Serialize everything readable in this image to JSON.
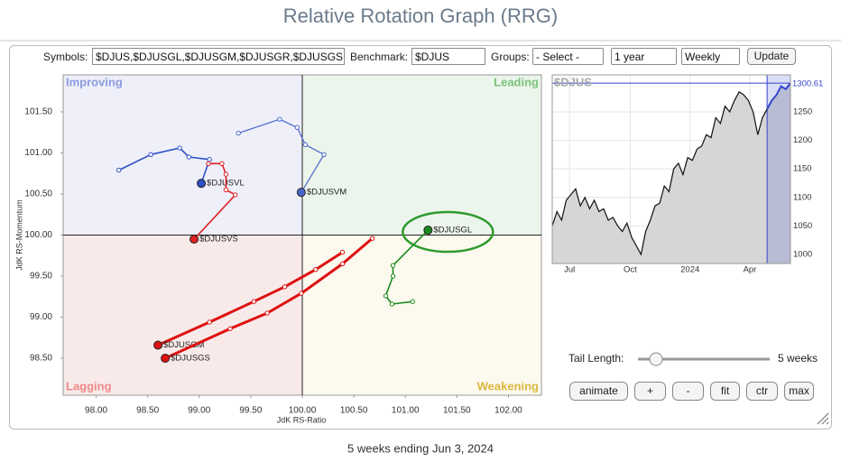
{
  "header": {
    "title": "Relative Rotation Graph (RRG)"
  },
  "controls": {
    "symbols_label": "Symbols:",
    "symbols_value": "$DJUS,$DJUSGL,$DJUSGM,$DJUSGR,$DJUSGS",
    "benchmark_label": "Benchmark:",
    "benchmark_value": "$DJUS",
    "groups_label": "Groups:",
    "groups_value": "- Select -",
    "period_value": "1 year",
    "frequency_value": "Weekly",
    "update_button": "Update"
  },
  "chart_data": [
    {
      "type": "rrg",
      "xlabel": "JdK RS-Ratio",
      "ylabel": "JdK RS-Momentum",
      "xlim": [
        97.68,
        102.32
      ],
      "ylim": [
        98.05,
        101.95
      ],
      "center": [
        100,
        100
      ],
      "quadrants": [
        "Improving",
        "Leading",
        "Lagging",
        "Weakening"
      ],
      "xticks": [
        {
          "value": 98,
          "label": "98.00"
        },
        {
          "value": 98.5,
          "label": "98.50"
        },
        {
          "value": 99,
          "label": "99.00"
        },
        {
          "value": 99.5,
          "label": "99.50"
        },
        {
          "value": 100,
          "label": "100.00"
        },
        {
          "value": 100.5,
          "label": "100.50"
        },
        {
          "value": 101,
          "label": "101.00"
        },
        {
          "value": 101.5,
          "label": "101.50"
        },
        {
          "value": 102,
          "label": "102.00"
        }
      ],
      "yticks": [
        {
          "value": 98.5,
          "label": "98.50"
        },
        {
          "value": 99,
          "label": "99.00"
        },
        {
          "value": 99.5,
          "label": "99.50"
        },
        {
          "value": 100,
          "label": "100.00"
        },
        {
          "value": 100.5,
          "label": "100.50"
        },
        {
          "value": 101,
          "label": "101.00"
        },
        {
          "value": 101.5,
          "label": "101.50"
        }
      ],
      "series": [
        {
          "name": "$DJUSVL",
          "color": "#2f4fc4",
          "line_width": 1.6,
          "x": [
            98.22,
            98.53,
            98.81,
            98.9,
            99.1,
            99.02
          ],
          "values": [
            100.79,
            100.98,
            101.06,
            100.95,
            100.92,
            100.63
          ]
        },
        {
          "name": "$DJUSVM",
          "color": "#4a66cc",
          "line_width": 1.2,
          "x": [
            99.38,
            99.78,
            99.95,
            100.03,
            100.21,
            99.99
          ],
          "values": [
            101.24,
            101.41,
            101.31,
            101.1,
            100.98,
            100.52
          ]
        },
        {
          "name": "$DJUSVS",
          "color": "#dd2222",
          "line_width": 1.6,
          "x": [
            99.09,
            99.22,
            99.26,
            99.26,
            99.35,
            98.95
          ],
          "values": [
            100.87,
            100.87,
            100.74,
            100.55,
            100.49,
            99.95
          ]
        },
        {
          "name": "$DJUSGL",
          "color": "#1a8a1a",
          "line_width": 1.6,
          "x": [
            101.07,
            100.87,
            100.81,
            100.88,
            100.88,
            101.22
          ],
          "values": [
            99.19,
            99.16,
            99.26,
            99.5,
            99.63,
            100.06
          ]
        },
        {
          "name": "$DJUSGM",
          "color": "#dd1111",
          "line_width": 3,
          "x": [
            100.39,
            100.13,
            99.83,
            99.53,
            99.1,
            98.6
          ],
          "values": [
            99.79,
            99.58,
            99.37,
            99.19,
            98.94,
            98.66
          ]
        },
        {
          "name": "$DJUSGS",
          "color": "#dd1111",
          "line_width": 3,
          "x": [
            100.68,
            100.39,
            99.99,
            99.66,
            99.3,
            98.67
          ],
          "values": [
            99.96,
            99.65,
            99.29,
            99.05,
            98.86,
            98.5
          ]
        }
      ]
    },
    {
      "type": "line",
      "title": "$DJUS",
      "color": "#111111",
      "highlight_color": "#3344cc",
      "xlim": [
        0,
        51
      ],
      "ylim": [
        984,
        1315
      ],
      "xticks": [
        {
          "value": 3.7,
          "label": "Jul"
        },
        {
          "value": 16.7,
          "label": "Oct"
        },
        {
          "value": 29.5,
          "label": "2024"
        },
        {
          "value": 42.3,
          "label": "Apr"
        }
      ],
      "yticks": [
        1000,
        1050,
        1100,
        1150,
        1200,
        1250
      ],
      "values": [
        1050,
        1075,
        1060,
        1095,
        1105,
        1115,
        1085,
        1100,
        1080,
        1095,
        1075,
        1080,
        1060,
        1065,
        1050,
        1040,
        1055,
        1030,
        1015,
        1000,
        1040,
        1060,
        1085,
        1090,
        1120,
        1110,
        1150,
        1160,
        1140,
        1170,
        1165,
        1185,
        1190,
        1210,
        1205,
        1240,
        1230,
        1260,
        1250,
        1270,
        1285,
        1280,
        1270,
        1250,
        1210,
        1240,
        1255,
        1270,
        1280,
        1295,
        1290,
        1300.61
      ],
      "last_value_label": "1300.61"
    }
  ],
  "tail": {
    "label": "Tail Length:",
    "value": "5 weeks"
  },
  "buttons": [
    "animate",
    "+",
    "-",
    "fit",
    "ctr",
    "max"
  ],
  "footer": {
    "caption": "5 weeks ending Jun 3, 2024"
  }
}
